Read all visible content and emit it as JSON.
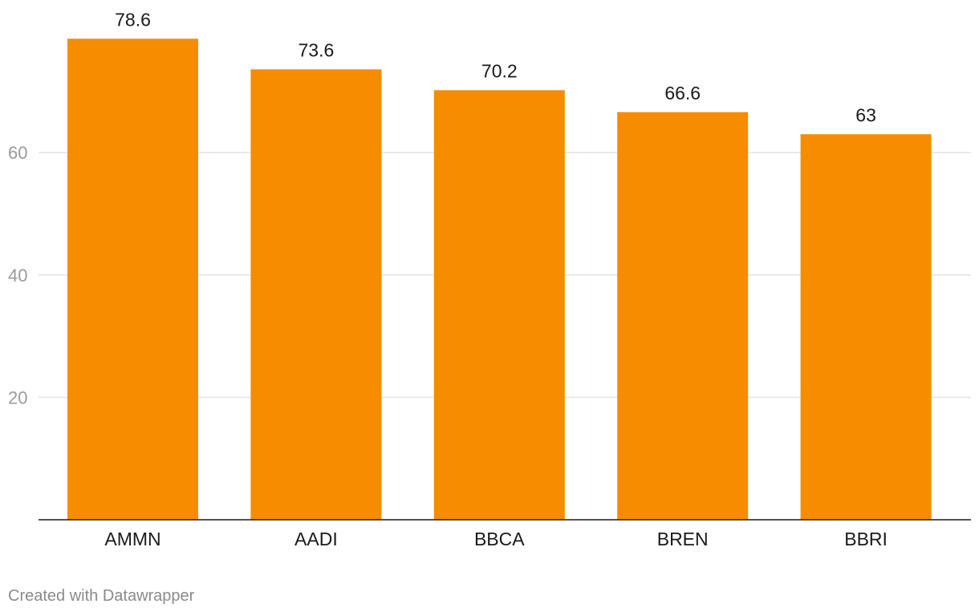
{
  "chart_data": {
    "type": "bar",
    "categories": [
      "AMMN",
      "AADI",
      "BBCA",
      "BREN",
      "BBRI"
    ],
    "values": [
      78.6,
      73.6,
      70.2,
      66.6,
      63
    ],
    "value_labels": [
      "78.6",
      "73.6",
      "70.2",
      "66.6",
      "63"
    ],
    "yticks": [
      20,
      40,
      60
    ],
    "ylim": [
      0,
      80
    ],
    "grid": true,
    "bar_color": "#f78c00"
  },
  "footer": {
    "credit": "Created with Datawrapper"
  }
}
